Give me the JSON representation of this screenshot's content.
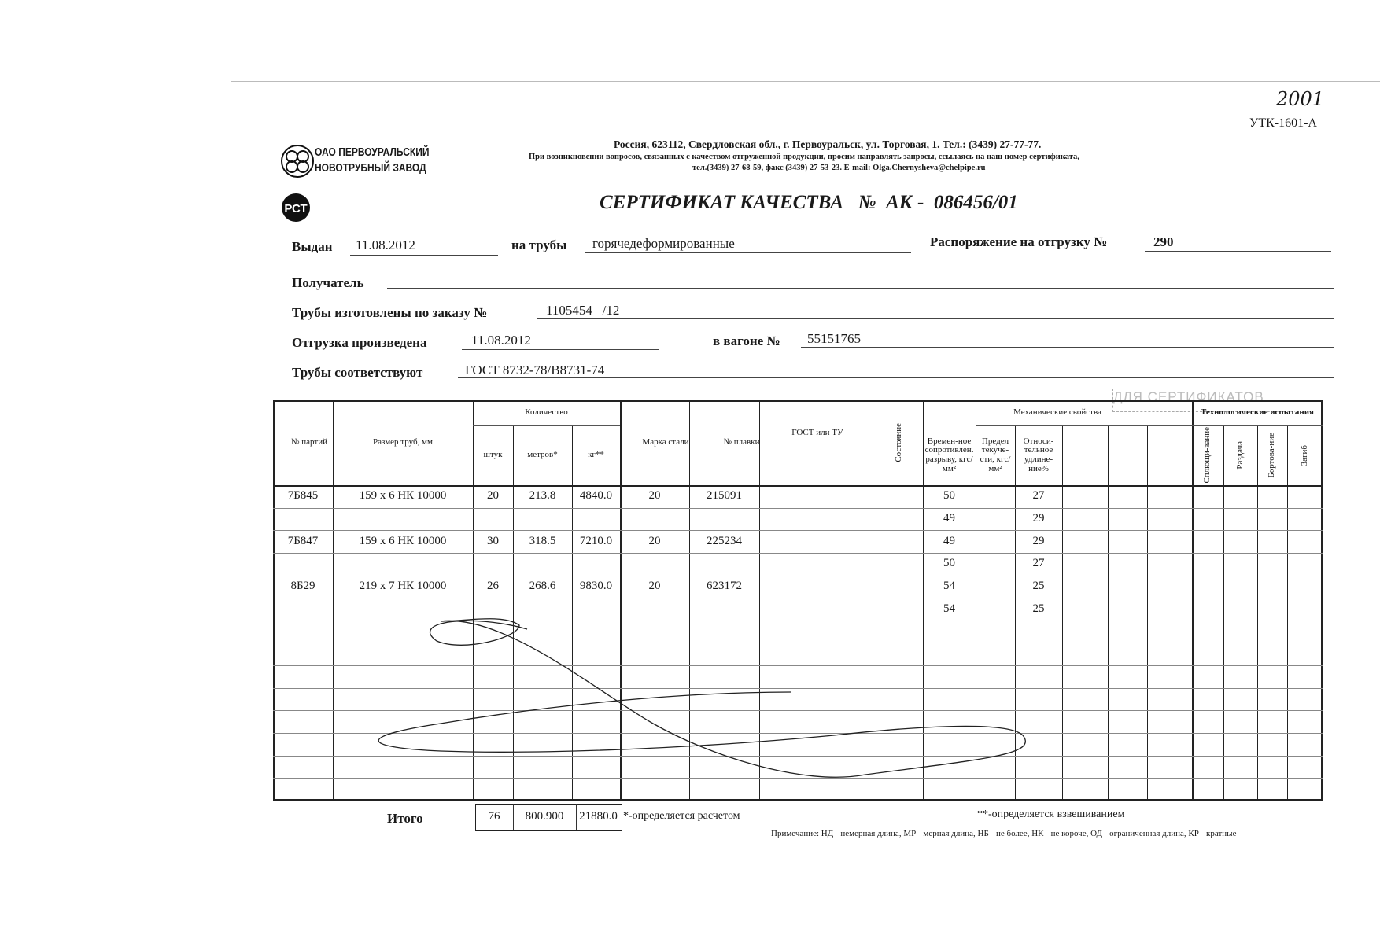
{
  "header": {
    "handwritten_mark": "2001",
    "form_code": "УТК-1601-А",
    "company_name_line1": "ОАО ПЕРВОУРАЛЬСКИЙ",
    "company_name_line2": "НОВОТРУБНЫЙ ЗАВОД",
    "address": "Россия, 623112, Свердловская обл., г. Первоуральск, ул. Торговая, 1. Тел.: (3439) 27-77-77.",
    "notice": "При возникновении вопросов, связанных с качеством отгруженной продукции, просим направлять запросы, ссылаясь на наш номер сертификата,",
    "contacts": "тел.(3439) 27-68-59, факс (3439) 27-53-23.  E-mail:",
    "email": "Olga.Chernysheva@chelpipe.ru",
    "cert_mark": "РСТ"
  },
  "title": "СЕРТИФИКАТ КАЧЕСТВА   №  АК -  086456/01",
  "fields": {
    "issued_label": "Выдан",
    "issued_value": "11.08.2012",
    "pipes_label": "на трубы",
    "pipes_value": "горячедеформированные",
    "order_label": "Распоряжение на отгрузку №",
    "order_value": "290",
    "recipient_label": "Получатель",
    "recipient_value": "",
    "made_label": "Трубы изготовлены по заказу №",
    "made_value": "1105454   /12",
    "shipped_label": "Отгрузка произведена",
    "shipped_value": "11.08.2012",
    "wagon_label": "в вагоне №",
    "wagon_value": "55151765",
    "conform_label": "Трубы соответствуют",
    "conform_value": "ГОСТ 8732-78/В8731-74"
  },
  "stamp": "ДЛЯ СЕРТИФИКАТОВ",
  "table": {
    "headers": {
      "batch": "№ партий",
      "size": "Размер труб, мм",
      "quantity": "Количество",
      "pcs": "штук",
      "meters": "метров*",
      "kg": "кг**",
      "steel": "Марка стали",
      "heat": "№ плавки",
      "gost": "ГОСТ или ТУ",
      "state": "Состояние",
      "mech": "Механические свойства",
      "tensile": "Времен-ное сопротивлен. разрыву, кгс/мм²",
      "yield": "Предел текуче-сти, кгс/мм²",
      "elong": "Относи-тельное удлине-ние%",
      "tech": "Технологические испытания",
      "flatten": "Сплющи-вание",
      "flare": "Раздача",
      "flange": "Бортова-ние",
      "bend": "Загиб"
    },
    "rows": [
      {
        "batch": "7Б845",
        "size": "159 x 6 НК 10000",
        "pcs": "20",
        "meters": "213.8",
        "kg": "4840.0",
        "steel": "20",
        "heat": "215091"
      },
      {
        "batch": "7Б847",
        "size": "159 x 6 НК 10000",
        "pcs": "30",
        "meters": "318.5",
        "kg": "7210.0",
        "steel": "20",
        "heat": "225234"
      },
      {
        "batch": "8Б29",
        "size": "219 x 7 НК 10000",
        "pcs": "26",
        "meters": "268.6",
        "kg": "9830.0",
        "steel": "20",
        "heat": "623172"
      }
    ],
    "mech_rows": [
      {
        "tensile": "50",
        "elong": "27"
      },
      {
        "tensile": "49",
        "elong": "29"
      },
      {
        "tensile": "49",
        "elong": "29"
      },
      {
        "tensile": "50",
        "elong": "27"
      },
      {
        "tensile": "54",
        "elong": "25"
      },
      {
        "tensile": "54",
        "elong": "25"
      }
    ],
    "total_label": "Итого",
    "total_pcs": "76",
    "total_meters": "800.900",
    "total_kg": "21880.0"
  },
  "footnotes": {
    "calc": "*-определяется расчетом",
    "weigh": "**-определяется взвешиванием",
    "note": "Примечание: НД - немерная длина, МР - мерная длина, НБ - не более, НК - не короче, ОД - ограниченная длина, КР - кратные"
  }
}
